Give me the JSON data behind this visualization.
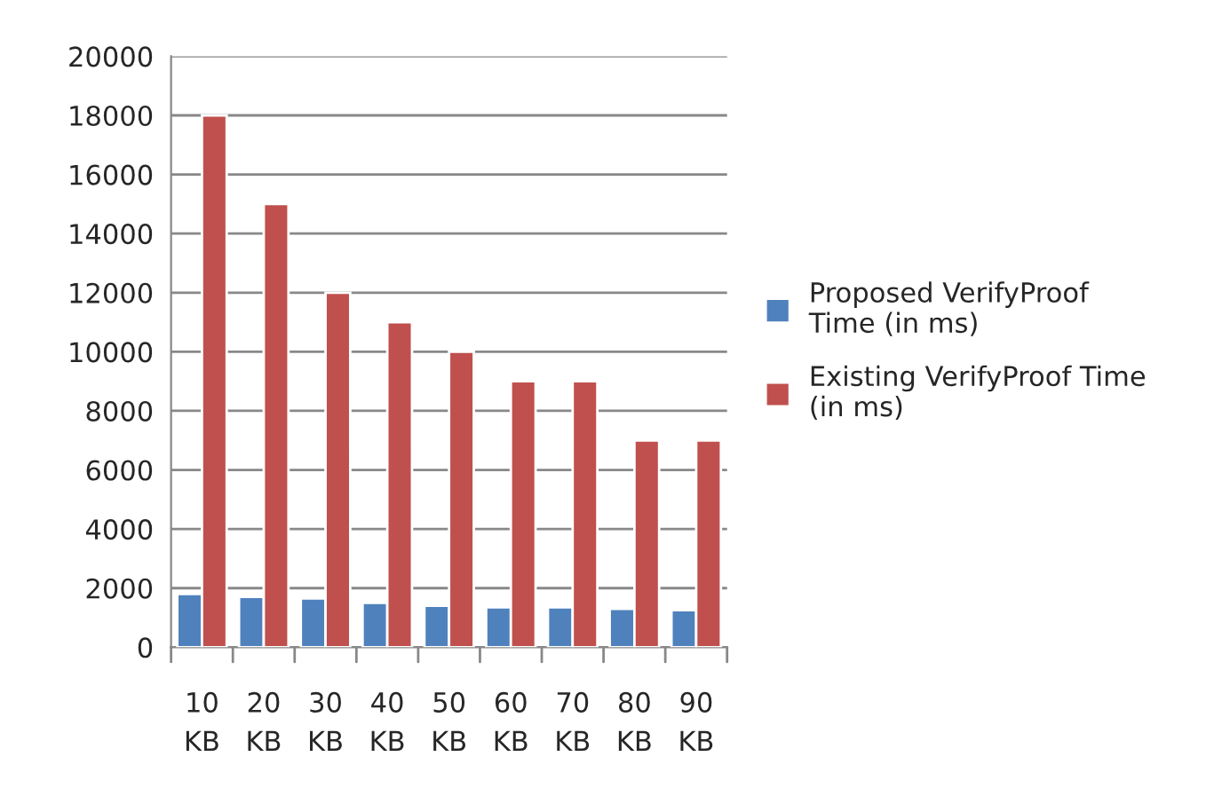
{
  "chart_data": {
    "type": "bar",
    "categories": [
      "10\nKB",
      "20\nKB",
      "30\nKB",
      "40\nKB",
      "50\nKB",
      "60\nKB",
      "70\nKB",
      "80\nKB",
      "90\nKB"
    ],
    "series": [
      {
        "name": "Proposed VerifyProof\nTime (in ms)",
        "color": "#4f81bd",
        "values": [
          1800,
          1700,
          1650,
          1500,
          1400,
          1350,
          1350,
          1300,
          1250
        ]
      },
      {
        "name": "Existing VerifyProof Time\n(in ms)",
        "color": "#c0504d",
        "values": [
          18000,
          15000,
          12000,
          11000,
          10000,
          9000,
          9000,
          7000,
          7000
        ]
      }
    ],
    "ylim": [
      0,
      20000
    ],
    "yticks": [
      0,
      2000,
      4000,
      6000,
      8000,
      10000,
      12000,
      14000,
      16000,
      18000,
      20000
    ],
    "grid": "y",
    "legend": "right"
  }
}
